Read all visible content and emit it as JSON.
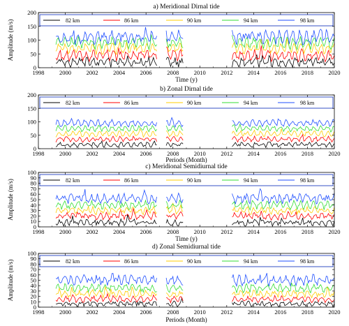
{
  "chart_data": [
    {
      "type": "line",
      "title": "a)        Meridional Dirnal tide",
      "xlabel": "Time (y)",
      "ylabel": "Amplitude (m/s)",
      "xlim": [
        1998,
        2020
      ],
      "ylim": [
        0,
        200
      ],
      "xticks": [
        "1998",
        "2000",
        "2002",
        "2004",
        "2006",
        "2008",
        "2010",
        "2012",
        "2014",
        "2016",
        "2018",
        "2020"
      ],
      "yticks": [
        "0",
        "50",
        "100",
        "150",
        "200"
      ],
      "legend_position": "top",
      "segments": [
        [
          1999.3,
          2006.8
        ],
        [
          2007.5,
          2008.8
        ],
        [
          2012.4,
          2020.0
        ]
      ],
      "series": [
        {
          "name": "82 km",
          "color": "#000000",
          "base": 20,
          "amp": 10,
          "noise": 10
        },
        {
          "name": "86 km",
          "color": "#ff0000",
          "base": 45,
          "amp": 14,
          "noise": 10
        },
        {
          "name": "90 km",
          "color": "#ffcc00",
          "base": 70,
          "amp": 14,
          "noise": 10
        },
        {
          "name": "94 km",
          "color": "#33dd33",
          "base": 90,
          "amp": 15,
          "noise": 10
        },
        {
          "name": "98 km",
          "color": "#1f4fff",
          "base": 110,
          "amp": 16,
          "noise": 14
        }
      ]
    },
    {
      "type": "line",
      "title": "b)        Zonal Dirnal tide",
      "xlabel": "Periods (Month)",
      "ylabel": "",
      "xlim": [
        1998,
        2020
      ],
      "ylim": [
        0,
        200
      ],
      "xticks": [
        "1998",
        "2000",
        "2002",
        "2004",
        "2006",
        "2008",
        "2010",
        "2012",
        "2014",
        "2016",
        "2018",
        "2020"
      ],
      "yticks": [
        "0",
        "50",
        "100",
        "150",
        "200"
      ],
      "legend_position": "top",
      "segments": [
        [
          1999.3,
          2006.8
        ],
        [
          2007.5,
          2008.8
        ],
        [
          2012.4,
          2020.0
        ]
      ],
      "series": [
        {
          "name": "82 km",
          "color": "#000000",
          "base": 15,
          "amp": 6,
          "noise": 5
        },
        {
          "name": "86 km",
          "color": "#ff0000",
          "base": 35,
          "amp": 7,
          "noise": 5
        },
        {
          "name": "90 km",
          "color": "#ffcc00",
          "base": 55,
          "amp": 8,
          "noise": 5
        },
        {
          "name": "94 km",
          "color": "#33dd33",
          "base": 75,
          "amp": 8,
          "noise": 5
        },
        {
          "name": "98 km",
          "color": "#1f4fff",
          "base": 95,
          "amp": 9,
          "noise": 6
        }
      ]
    },
    {
      "type": "line",
      "title": "c)        Meridional Semidiurnal tide",
      "xlabel": "Time (y)",
      "ylabel": "Amplitude (m/s)",
      "xlim": [
        1998,
        2020
      ],
      "ylim": [
        0,
        100
      ],
      "xticks": [
        "1998",
        "2000",
        "2002",
        "2004",
        "2006",
        "2008",
        "2010",
        "2012",
        "2014",
        "2016",
        "2018",
        "2020"
      ],
      "yticks": [
        "0",
        "10",
        "20",
        "30",
        "40",
        "50",
        "60",
        "70",
        "80",
        "90",
        "100"
      ],
      "legend_position": "top",
      "segments": [
        [
          1999.3,
          2006.8
        ],
        [
          2007.5,
          2008.8
        ],
        [
          2012.4,
          2020.0
        ]
      ],
      "series": [
        {
          "name": "82 km",
          "color": "#000000",
          "base": 8,
          "amp": 3,
          "noise": 4
        },
        {
          "name": "86 km",
          "color": "#ff0000",
          "base": 20,
          "amp": 4,
          "noise": 4
        },
        {
          "name": "90 km",
          "color": "#ffcc00",
          "base": 30,
          "amp": 4,
          "noise": 4
        },
        {
          "name": "94 km",
          "color": "#33dd33",
          "base": 40,
          "amp": 5,
          "noise": 4
        },
        {
          "name": "98 km",
          "color": "#1f4fff",
          "base": 52,
          "amp": 5,
          "noise": 6
        }
      ]
    },
    {
      "type": "line",
      "title": "d)        Zonal Semidiurnal tide",
      "xlabel": "Periods (Month)",
      "ylabel": "Amplitude (m/s)",
      "xlim": [
        1998,
        2020
      ],
      "ylim": [
        0,
        100
      ],
      "xticks": [
        "1998",
        "2000",
        "2002",
        "2004",
        "2006",
        "2008",
        "2010",
        "2012",
        "2014",
        "2016",
        "2018",
        "2020"
      ],
      "yticks": [
        "0",
        "10",
        "20",
        "30",
        "40",
        "50",
        "60",
        "70",
        "80",
        "90",
        "100"
      ],
      "legend_position": "top",
      "segments": [
        [
          1999.3,
          2006.8
        ],
        [
          2007.5,
          2008.8
        ],
        [
          2012.4,
          2020.0
        ]
      ],
      "series": [
        {
          "name": "82 km",
          "color": "#000000",
          "base": 6,
          "amp": 3,
          "noise": 3
        },
        {
          "name": "86 km",
          "color": "#ff0000",
          "base": 15,
          "amp": 4,
          "noise": 3
        },
        {
          "name": "90 km",
          "color": "#ffcc00",
          "base": 25,
          "amp": 4,
          "noise": 4
        },
        {
          "name": "94 km",
          "color": "#33dd33",
          "base": 35,
          "amp": 5,
          "noise": 4
        },
        {
          "name": "98 km",
          "color": "#1f4fff",
          "base": 50,
          "amp": 6,
          "noise": 6
        }
      ]
    }
  ]
}
